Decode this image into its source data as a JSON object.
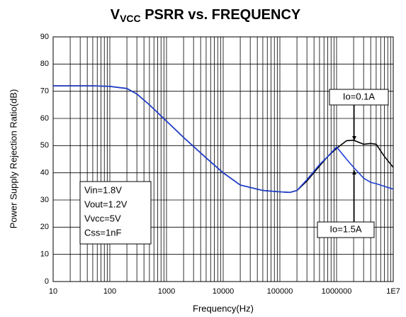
{
  "chart_data": {
    "type": "line",
    "title": {
      "main": "V",
      "subscript": "VCC",
      "rest": " PSRR vs. FREQUENCY"
    },
    "xlabel": "Frequency(Hz)",
    "ylabel": "Power Supply Rejection Ratio(dB)",
    "x": [
      10,
      20,
      50,
      100,
      200,
      300,
      500,
      1000,
      2000,
      5000,
      10000,
      20000,
      50000,
      100000,
      150000,
      200000,
      300000,
      500000,
      700000,
      1000000,
      1500000,
      2000000,
      3000000,
      4000000,
      5000000,
      7000000,
      10000000
    ],
    "series": [
      {
        "name": "Io=0.1A",
        "color": "#000000",
        "values": [
          72,
          72,
          72,
          71.8,
          71,
          69,
          65,
          59,
          53,
          45.5,
          40,
          35.5,
          33.5,
          33,
          32.8,
          33.5,
          37,
          42.5,
          46,
          49,
          51.8,
          52,
          50.5,
          50.8,
          50.5,
          46,
          42
        ]
      },
      {
        "name": "Io=1.5A",
        "color": "#1f3fd6",
        "values": [
          72,
          72,
          72,
          71.8,
          71,
          69,
          65,
          59,
          53,
          45.5,
          40,
          35.5,
          33.5,
          33,
          32.8,
          33.5,
          37.5,
          43,
          46,
          49.5,
          45,
          42,
          38,
          36.5,
          36,
          35,
          34
        ]
      }
    ],
    "conditions": [
      "Vin=1.8V",
      "Vout=1.2V",
      "Vvcc=5V",
      "Css=1nF"
    ],
    "xscale": "log",
    "xlim": [
      10,
      10000000
    ],
    "xticks": [
      10,
      100,
      1000,
      10000,
      100000,
      1000000,
      {
        "value": 10000000,
        "label": "1E7"
      }
    ],
    "ylim": [
      0,
      90
    ],
    "yticks": [
      0,
      10,
      20,
      30,
      40,
      50,
      60,
      70,
      80,
      90
    ],
    "grid": true,
    "minor_grid": true
  }
}
